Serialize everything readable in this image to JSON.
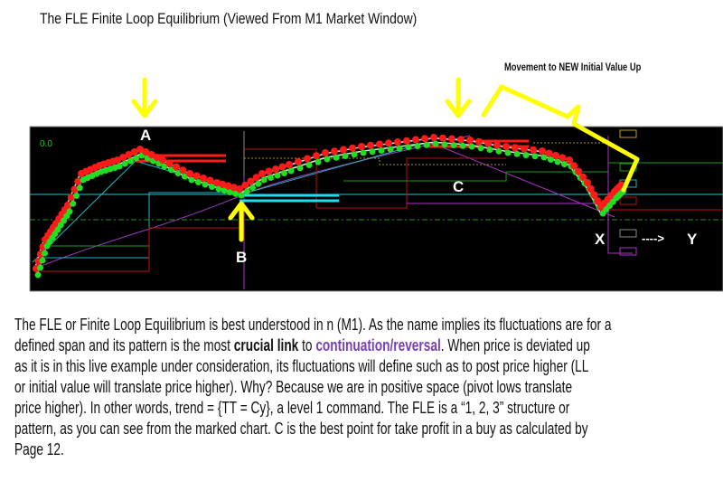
{
  "title": "The FLE Finite Loop Equilibrium (Viewed From M1 Market Window)",
  "annotation": "Movement to NEW Initial Value Up",
  "chart": {
    "indicator_value": "0.0",
    "labels": {
      "a": "A",
      "b": "B",
      "c": "C",
      "x": "X",
      "y_arrow": "---->",
      "y": "Y"
    },
    "colors": {
      "background": "#000000",
      "arrows": "#ffff00",
      "up_bar": "#ff1a1a",
      "down_bar": "#22dd22",
      "trend": "#19c6d6",
      "pivot": "#b030d0"
    }
  },
  "paragraph": {
    "lines": [
      [
        {
          "t": "The FLE or Finite Loop Equilibrium is best understood in n (M1). As the name implies its fluctuations are for a"
        }
      ],
      [
        {
          "t": "defined span and its pattern is the most "
        },
        {
          "t": "crucial link",
          "s": "bold"
        },
        {
          "t": " to "
        },
        {
          "t": "continuation/reversal",
          "s": "purple"
        },
        {
          "t": ". When price is deviated up"
        }
      ],
      [
        {
          "t": "as it is in this live example under consideration, its fluctuations will define such as to post price higher (LL"
        }
      ],
      [
        {
          "t": "or initial value will translate price higher). Why? Because we are in positive space (pivot lows translate"
        }
      ],
      [
        {
          "t": "price higher). In other words, trend = {TT = Cy}, a level 1 command. The FLE is a “1, 2, 3” structure or"
        }
      ],
      [
        {
          "t": "pattern, as you can see from the marked chart. C is the best point for take profit in a buy as calculated by"
        }
      ],
      [
        {
          "t": "Page 12."
        }
      ]
    ]
  }
}
